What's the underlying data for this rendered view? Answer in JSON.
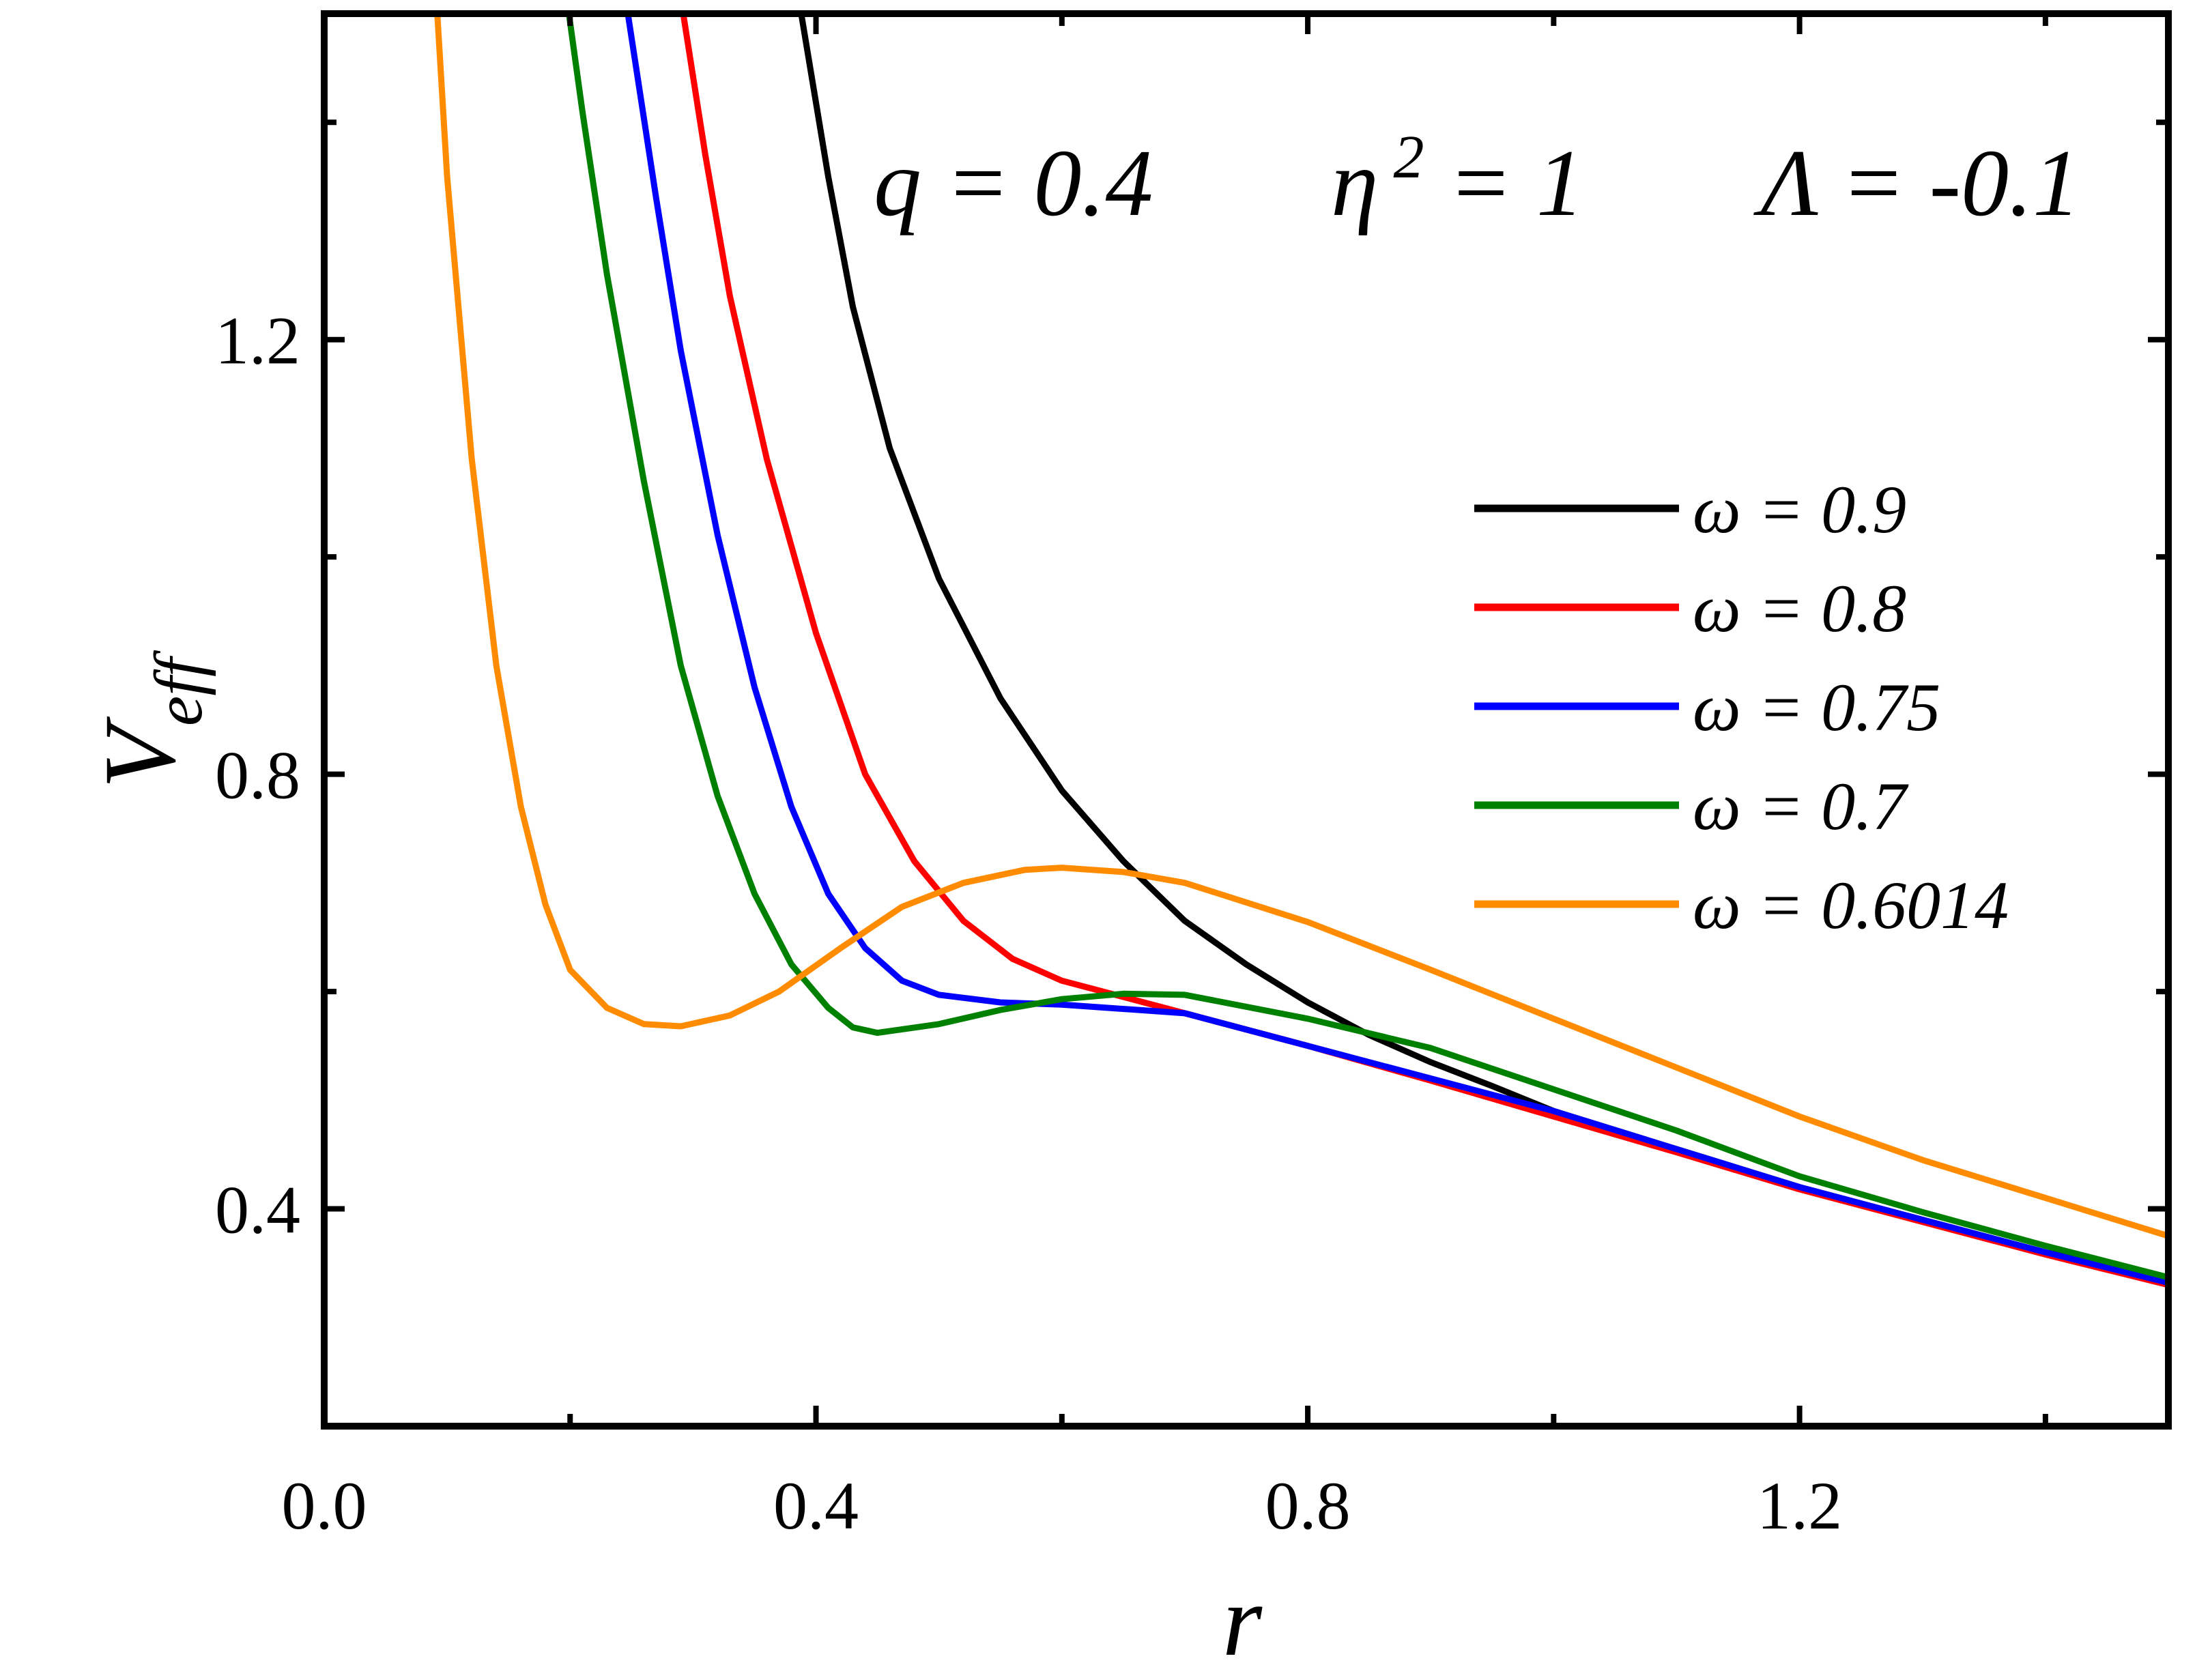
{
  "chart_data": {
    "type": "line",
    "xlabel": "r",
    "ylabel_main": "V",
    "ylabel_sub": "eff",
    "xlim": [
      0.0,
      1.5
    ],
    "ylim": [
      0.2,
      1.5
    ],
    "xticks": [
      "0.0",
      "0.4",
      "0.8",
      "1.2"
    ],
    "yticks": [
      "0.4",
      "0.8",
      "1.2"
    ],
    "grid": false,
    "legend_position": "right",
    "params": {
      "q": "q = 0.4",
      "eta_base": "η",
      "eta_sup": "2",
      "eta_rest": " = 1",
      "lambda": "Λ = -0.1"
    },
    "series": [
      {
        "name": "ω = 0.9",
        "color": "#000000",
        "points": [
          [
            0.388,
            1.5
          ],
          [
            0.41,
            1.35
          ],
          [
            0.43,
            1.23
          ],
          [
            0.46,
            1.1
          ],
          [
            0.5,
            0.98
          ],
          [
            0.55,
            0.87
          ],
          [
            0.6,
            0.785
          ],
          [
            0.65,
            0.72
          ],
          [
            0.7,
            0.665
          ],
          [
            0.75,
            0.625
          ],
          [
            0.8,
            0.59
          ],
          [
            0.85,
            0.56
          ],
          [
            0.9,
            0.535
          ],
          [
            0.95,
            0.513
          ],
          [
            1.0,
            0.49
          ],
          [
            1.1,
            0.455
          ],
          [
            1.2,
            0.42
          ],
          [
            1.3,
            0.39
          ],
          [
            1.4,
            0.36
          ],
          [
            1.5,
            0.335
          ]
        ]
      },
      {
        "name": "ω = 0.8",
        "color": "#ff0000",
        "points": [
          [
            0.292,
            1.5
          ],
          [
            0.31,
            1.37
          ],
          [
            0.33,
            1.24
          ],
          [
            0.36,
            1.09
          ],
          [
            0.4,
            0.93
          ],
          [
            0.44,
            0.8
          ],
          [
            0.48,
            0.72
          ],
          [
            0.52,
            0.665
          ],
          [
            0.56,
            0.63
          ],
          [
            0.6,
            0.61
          ],
          [
            0.65,
            0.595
          ],
          [
            0.7,
            0.58
          ],
          [
            0.8,
            0.55
          ],
          [
            0.9,
            0.518
          ],
          [
            1.0,
            0.485
          ],
          [
            1.1,
            0.452
          ],
          [
            1.2,
            0.418
          ],
          [
            1.3,
            0.388
          ],
          [
            1.4,
            0.358
          ],
          [
            1.5,
            0.33
          ]
        ]
      },
      {
        "name": "ω = 0.75",
        "color": "#0000ff",
        "points": [
          [
            0.247,
            1.5
          ],
          [
            0.27,
            1.33
          ],
          [
            0.29,
            1.19
          ],
          [
            0.32,
            1.02
          ],
          [
            0.35,
            0.88
          ],
          [
            0.38,
            0.77
          ],
          [
            0.41,
            0.69
          ],
          [
            0.44,
            0.64
          ],
          [
            0.47,
            0.61
          ],
          [
            0.5,
            0.597
          ],
          [
            0.55,
            0.59
          ],
          [
            0.6,
            0.588
          ],
          [
            0.7,
            0.58
          ],
          [
            0.8,
            0.55
          ],
          [
            0.9,
            0.52
          ],
          [
            1.0,
            0.49
          ],
          [
            1.1,
            0.455
          ],
          [
            1.2,
            0.42
          ],
          [
            1.3,
            0.39
          ],
          [
            1.4,
            0.36
          ],
          [
            1.5,
            0.332
          ]
        ]
      },
      {
        "name": "ω = 0.7",
        "color": "#008000",
        "points": [
          [
            0.199,
            1.5
          ],
          [
            0.21,
            1.41
          ],
          [
            0.23,
            1.26
          ],
          [
            0.26,
            1.07
          ],
          [
            0.29,
            0.9
          ],
          [
            0.32,
            0.78
          ],
          [
            0.35,
            0.69
          ],
          [
            0.38,
            0.625
          ],
          [
            0.41,
            0.585
          ],
          [
            0.43,
            0.567
          ],
          [
            0.45,
            0.562
          ],
          [
            0.5,
            0.57
          ],
          [
            0.55,
            0.583
          ],
          [
            0.6,
            0.593
          ],
          [
            0.65,
            0.598
          ],
          [
            0.7,
            0.597
          ],
          [
            0.8,
            0.575
          ],
          [
            0.9,
            0.548
          ],
          [
            1.0,
            0.51
          ],
          [
            1.1,
            0.472
          ],
          [
            1.2,
            0.43
          ],
          [
            1.3,
            0.397
          ],
          [
            1.4,
            0.366
          ],
          [
            1.5,
            0.337
          ]
        ]
      },
      {
        "name": "ω = 0.6014",
        "color": "#ff8c00",
        "points": [
          [
            0.092,
            1.5
          ],
          [
            0.1,
            1.35
          ],
          [
            0.12,
            1.09
          ],
          [
            0.14,
            0.9
          ],
          [
            0.16,
            0.77
          ],
          [
            0.18,
            0.68
          ],
          [
            0.2,
            0.62
          ],
          [
            0.23,
            0.585
          ],
          [
            0.26,
            0.57
          ],
          [
            0.29,
            0.568
          ],
          [
            0.33,
            0.578
          ],
          [
            0.37,
            0.6
          ],
          [
            0.42,
            0.64
          ],
          [
            0.47,
            0.678
          ],
          [
            0.52,
            0.7
          ],
          [
            0.57,
            0.712
          ],
          [
            0.6,
            0.714
          ],
          [
            0.65,
            0.71
          ],
          [
            0.7,
            0.7
          ],
          [
            0.8,
            0.664
          ],
          [
            0.9,
            0.62
          ],
          [
            1.0,
            0.575
          ],
          [
            1.1,
            0.53
          ],
          [
            1.2,
            0.485
          ],
          [
            1.3,
            0.445
          ],
          [
            1.4,
            0.41
          ],
          [
            1.5,
            0.375
          ]
        ]
      }
    ]
  }
}
